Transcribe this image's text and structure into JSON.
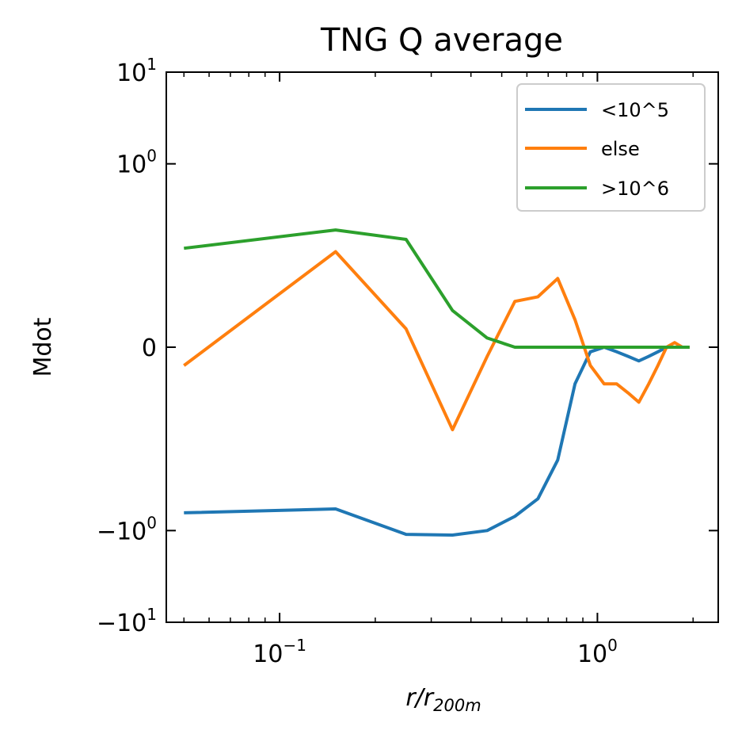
{
  "chart_data": {
    "type": "line",
    "title": "TNG Q average",
    "ylabel": "Mdot",
    "xlabel": {
      "base": "r/r",
      "sub": "200m"
    },
    "x_scale": "log",
    "y_scale": "symlog",
    "xlim": [
      0.044,
      2.4
    ],
    "ylim": [
      -10,
      10
    ],
    "x_ticks": [
      {
        "value": 0.1,
        "base": "10",
        "exp": "−1"
      },
      {
        "value": 1,
        "base": "10",
        "exp": "0"
      }
    ],
    "y_ticks": [
      {
        "value": 10,
        "base": "10",
        "exp": "1"
      },
      {
        "value": 1,
        "base": "10",
        "exp": "0"
      },
      {
        "value": 0,
        "base": "0",
        "exp": ""
      },
      {
        "value": -1,
        "base": "−10",
        "exp": "0"
      },
      {
        "value": -10,
        "base": "−10",
        "exp": "1"
      }
    ],
    "grid": false,
    "legend": {
      "position": "top-right"
    },
    "series": [
      {
        "name": "<10^5",
        "color": "#1f77b4",
        "x": [
          0.05,
          0.15,
          0.25,
          0.35,
          0.45,
          0.55,
          0.65,
          0.75,
          0.85,
          0.95,
          1.05,
          1.15,
          1.25,
          1.35,
          1.45,
          1.55,
          1.65,
          1.75,
          1.85,
          1.95
        ],
        "y": [
          -0.64,
          -0.58,
          -1.1,
          -1.12,
          -1.0,
          -0.7,
          -0.45,
          -0.17,
          -0.04,
          -0.005,
          0.0,
          -0.005,
          -0.01,
          -0.015,
          -0.01,
          -0.005,
          0.0,
          0.0,
          0.0,
          0.0
        ]
      },
      {
        "name": "else",
        "color": "#ff7f0e",
        "x": [
          0.05,
          0.15,
          0.25,
          0.35,
          0.45,
          0.55,
          0.65,
          0.75,
          0.85,
          0.95,
          1.05,
          1.15,
          1.25,
          1.35,
          1.45,
          1.55,
          1.65,
          1.75,
          1.85,
          1.95
        ],
        "y": [
          -0.02,
          0.11,
          0.02,
          -0.09,
          -0.01,
          0.05,
          0.055,
          0.075,
          0.03,
          -0.02,
          -0.04,
          -0.04,
          -0.05,
          -0.06,
          -0.04,
          -0.02,
          0.0,
          0.005,
          0.0,
          0.0
        ]
      },
      {
        "name": ">10^6",
        "color": "#2ca02c",
        "x": [
          0.05,
          0.15,
          0.25,
          0.35,
          0.45,
          0.55,
          0.65,
          0.75,
          0.85,
          0.95,
          1.05,
          1.15,
          1.25,
          1.35,
          1.45,
          1.55,
          1.65,
          1.75,
          1.85,
          1.95
        ],
        "y": [
          0.12,
          0.19,
          0.15,
          0.04,
          0.01,
          0.0,
          0.0,
          0.0,
          0.0,
          0.0,
          0.0,
          0.0,
          0.0,
          0.0,
          0.0,
          0.0,
          0.0,
          0.0,
          0.0,
          0.0
        ]
      }
    ]
  }
}
